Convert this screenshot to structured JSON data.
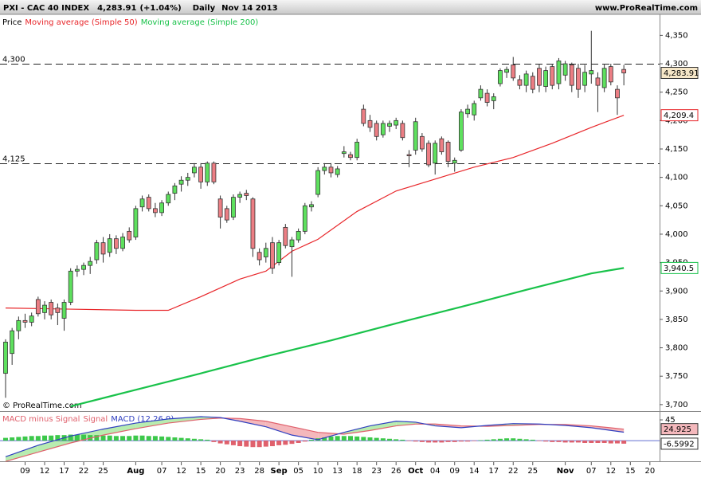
{
  "header": {
    "symbol": "PXI - CAC 40 INDEX",
    "price": "4,283.91",
    "change": "(+1.04%)",
    "period": "Daily",
    "date": "Nov 14 2013",
    "site": "www.ProRealTime.com"
  },
  "copyright": "© ProRealTime.com",
  "chart_data": [
    {
      "type": "candlestick",
      "price_label": "Price",
      "up_color": "#5ee05e",
      "down_color": "#ec7e84",
      "last_close_label": "4,283.91",
      "xlim": [
        -0.857,
        100.49
      ],
      "ylim": [
        3690,
        4387
      ],
      "yticks": [
        {
          "value": 3700,
          "label": "3,700"
        },
        {
          "value": 3750,
          "label": "3,750"
        },
        {
          "value": 3800,
          "label": "3,800"
        },
        {
          "value": 3850,
          "label": "3,850"
        },
        {
          "value": 3900,
          "label": "3,900"
        },
        {
          "value": 3950,
          "label": "3,950"
        },
        {
          "value": 4000,
          "label": "4,000"
        },
        {
          "value": 4050,
          "label": "4,050"
        },
        {
          "value": 4100,
          "label": "4,100"
        },
        {
          "value": 4150,
          "label": "4,150"
        },
        {
          "value": 4200,
          "label": "4,200"
        },
        {
          "value": 4250,
          "label": "4,250"
        },
        {
          "value": 4300,
          "label": "4,300"
        },
        {
          "value": 4350,
          "label": "4,350"
        }
      ],
      "xticks": [
        {
          "value": 3,
          "label": "09"
        },
        {
          "value": 6,
          "label": "12"
        },
        {
          "value": 9,
          "label": "17"
        },
        {
          "value": 12,
          "label": "22"
        },
        {
          "value": 15,
          "label": "25"
        },
        {
          "value": 20,
          "label": "Aug"
        },
        {
          "value": 24,
          "label": "07"
        },
        {
          "value": 27,
          "label": "12"
        },
        {
          "value": 30,
          "label": "15"
        },
        {
          "value": 33,
          "label": "20"
        },
        {
          "value": 36,
          "label": "23"
        },
        {
          "value": 39,
          "label": "28"
        },
        {
          "value": 42,
          "label": "Sep"
        },
        {
          "value": 45,
          "label": "05"
        },
        {
          "value": 48,
          "label": "10"
        },
        {
          "value": 51,
          "label": "13"
        },
        {
          "value": 54,
          "label": "18"
        },
        {
          "value": 57,
          "label": "23"
        },
        {
          "value": 60,
          "label": "26"
        },
        {
          "value": 63,
          "label": "Oct"
        },
        {
          "value": 66,
          "label": "04"
        },
        {
          "value": 69,
          "label": "09"
        },
        {
          "value": 72,
          "label": "14"
        },
        {
          "value": 75,
          "label": "17"
        },
        {
          "value": 78,
          "label": "22"
        },
        {
          "value": 81,
          "label": "25"
        },
        {
          "value": 86,
          "label": "Nov"
        },
        {
          "value": 90,
          "label": "07"
        },
        {
          "value": 93,
          "label": "12"
        },
        {
          "value": 96,
          "label": "15"
        },
        {
          "value": 99,
          "label": "20"
        }
      ],
      "levels": [
        {
          "value": 4300,
          "label": "4,300"
        },
        {
          "value": 4125,
          "label": "4,125"
        }
      ],
      "open": [
        3755,
        3790,
        3830,
        3848,
        3845,
        3885,
        3862,
        3880,
        3870,
        3852,
        3880,
        3935,
        3938,
        3945,
        3955,
        3985,
        3968,
        3992,
        3975,
        4005,
        3995,
        4048,
        4065,
        4045,
        4038,
        4055,
        4072,
        4088,
        4095,
        4108,
        4118,
        4092,
        4125,
        4062,
        4045,
        4030,
        4065,
        4072,
        4062,
        3968,
        3960,
        3985,
        3950,
        4012,
        3978,
        3990,
        4005,
        4048,
        4070,
        4112,
        4118,
        4105,
        4142,
        4140,
        4135,
        4220,
        4200,
        4195,
        4175,
        4190,
        4192,
        4195,
        4140,
        4148,
        4172,
        4160,
        4125,
        4168,
        4162,
        4125,
        4148,
        4212,
        4210,
        4240,
        4248,
        4235,
        4265,
        4285,
        4298,
        4272,
        4262,
        4278,
        4292,
        4260,
        4295,
        4265,
        4280,
        4298,
        4292,
        4262,
        4282,
        4275,
        4258,
        4295,
        4255,
        4290
      ],
      "high": [
        3815,
        3835,
        3855,
        3860,
        3862,
        3890,
        3882,
        3885,
        3878,
        3885,
        3940,
        3945,
        3950,
        3960,
        3990,
        3995,
        4000,
        3998,
        4002,
        4012,
        4050,
        4068,
        4070,
        4055,
        4060,
        4075,
        4090,
        4102,
        4108,
        4125,
        4125,
        4128,
        4128,
        4068,
        4050,
        4070,
        4075,
        4078,
        4065,
        3975,
        3985,
        3995,
        3990,
        4018,
        3995,
        4010,
        4055,
        4058,
        4118,
        4125,
        4125,
        4120,
        4155,
        4145,
        4168,
        4228,
        4210,
        4200,
        4200,
        4200,
        4205,
        4200,
        4148,
        4205,
        4178,
        4165,
        4165,
        4172,
        4165,
        4135,
        4220,
        4228,
        4235,
        4262,
        4255,
        4248,
        4292,
        4295,
        4312,
        4280,
        4288,
        4285,
        4300,
        4295,
        4300,
        4310,
        4305,
        4302,
        4300,
        4298,
        4358,
        4285,
        4300,
        4300,
        4262,
        4298
      ],
      "low": [
        3712,
        3770,
        3815,
        3835,
        3838,
        3855,
        3850,
        3850,
        3840,
        3830,
        3875,
        3925,
        3928,
        3930,
        3948,
        3950,
        3960,
        3965,
        3970,
        3985,
        3990,
        4040,
        4040,
        4030,
        4032,
        4050,
        4060,
        4075,
        4085,
        4100,
        4080,
        4085,
        4088,
        4010,
        4020,
        4025,
        4055,
        4060,
        3960,
        3945,
        3950,
        3930,
        3945,
        3975,
        3925,
        3985,
        4000,
        4040,
        4065,
        4105,
        4100,
        4100,
        4135,
        4130,
        4130,
        4190,
        4180,
        4165,
        4170,
        4180,
        4185,
        4165,
        4118,
        4140,
        4145,
        4118,
        4105,
        4140,
        4118,
        4110,
        4145,
        4205,
        4200,
        4235,
        4225,
        4220,
        4260,
        4275,
        4270,
        4255,
        4250,
        4248,
        4250,
        4250,
        4255,
        4255,
        4270,
        4250,
        4240,
        4250,
        4265,
        4215,
        4250,
        4262,
        4210,
        4262
      ],
      "close": [
        3810,
        3830,
        3848,
        3845,
        3856,
        3860,
        3875,
        3858,
        3862,
        3880,
        3935,
        3938,
        3945,
        3952,
        3985,
        3965,
        3992,
        3975,
        3995,
        3990,
        4045,
        4062,
        4045,
        4038,
        4055,
        4070,
        4085,
        4095,
        4100,
        4118,
        4092,
        4125,
        4092,
        4030,
        4025,
        4065,
        4070,
        4068,
        3975,
        3955,
        3975,
        3940,
        3985,
        3980,
        3990,
        4005,
        4050,
        4052,
        4112,
        4118,
        4108,
        4115,
        4145,
        4135,
        4162,
        4195,
        4188,
        4172,
        4195,
        4195,
        4200,
        4170,
        4138,
        4198,
        4150,
        4122,
        4160,
        4145,
        4128,
        4130,
        4215,
        4220,
        4230,
        4255,
        4232,
        4242,
        4288,
        4290,
        4275,
        4262,
        4282,
        4255,
        4262,
        4288,
        4262,
        4305,
        4300,
        4262,
        4255,
        4285,
        4288,
        4262,
        4292,
        4268,
        4240,
        4283.91
      ],
      "series": [
        {
          "name": "Moving average (Simple 50)",
          "color": "#e8262a",
          "x": [
            0,
            10,
            20,
            25,
            30,
            36,
            40,
            44,
            48,
            54,
            60,
            66,
            72,
            78,
            84,
            90,
            95
          ],
          "values": [
            3870,
            3868,
            3866,
            3866,
            3890,
            3921,
            3935,
            3970,
            3991,
            4040,
            4076,
            4097,
            4118,
            4135,
            4160,
            4188,
            4209.4
          ],
          "last_label": "4,209.4"
        },
        {
          "name": "Moving average (Simple 200)",
          "color": "#19c24a",
          "x": [
            10,
            20,
            30,
            40,
            50,
            60,
            70,
            80,
            90,
            95
          ],
          "values": [
            3697,
            3726,
            3755,
            3785,
            3813,
            3843,
            3872,
            3902,
            3931,
            3940.5
          ],
          "last_label": "3,940.5"
        }
      ]
    },
    {
      "type": "macd",
      "xlim": [
        -0.857,
        100.49
      ],
      "ylim": [
        -43,
        60.6
      ],
      "yticks": [
        45
      ],
      "series": [
        {
          "name": "MACD minus Signal",
          "color": "#e0606c",
          "up_color": "#3cc84a",
          "down_color": "#e0606c",
          "values": [
            6,
            7,
            8,
            9,
            10,
            10,
            11,
            11,
            12,
            12,
            13,
            13,
            13,
            12,
            12,
            11,
            11,
            10,
            10,
            10,
            11,
            11,
            10,
            10,
            9,
            8,
            7,
            6,
            5,
            4,
            3,
            2,
            -3,
            -6,
            -8,
            -10,
            -12,
            -13,
            -14,
            -14,
            -13,
            -12,
            -10,
            -9,
            -7,
            -5,
            -2,
            2,
            5,
            7,
            9,
            10,
            10,
            10,
            9,
            8,
            7,
            6,
            5,
            4,
            3,
            2,
            -1,
            -2,
            -3,
            -4,
            -4,
            -4,
            -3,
            -3,
            -2,
            -2,
            -1,
            1,
            2,
            3,
            4,
            5,
            5,
            4,
            3,
            2,
            -1,
            -2,
            -3,
            -3,
            -4,
            -4,
            -4,
            -5,
            -5,
            -5,
            -5,
            -6,
            -6,
            -6.5992
          ],
          "last_label": "-6.5992"
        },
        {
          "name": "Signal",
          "color": "#e0606c",
          "x": [
            0,
            5,
            10,
            15,
            20,
            25,
            30,
            33,
            36,
            40,
            44,
            48,
            52,
            56,
            60,
            63,
            66,
            70,
            74,
            78,
            82,
            86,
            90,
            95
          ],
          "values": [
            -45,
            -25,
            -5,
            12,
            26,
            38,
            46,
            49,
            48,
            42,
            30,
            18,
            14,
            22,
            32,
            36,
            36,
            32,
            31,
            33,
            35,
            35,
            32,
            24.925
          ],
          "last_label": "24.925"
        },
        {
          "name": "MACD (12,26,9)",
          "color": "#2f3fc0",
          "x": [
            0,
            5,
            10,
            15,
            20,
            25,
            30,
            33,
            36,
            40,
            44,
            48,
            52,
            56,
            60,
            63,
            66,
            70,
            74,
            78,
            82,
            86,
            90,
            95
          ],
          "values": [
            -35,
            -10,
            10,
            25,
            38,
            47,
            52,
            50,
            42,
            30,
            12,
            2,
            18,
            32,
            42,
            40,
            32,
            28,
            33,
            37,
            36,
            33,
            28,
            18.3
          ]
        }
      ]
    }
  ]
}
